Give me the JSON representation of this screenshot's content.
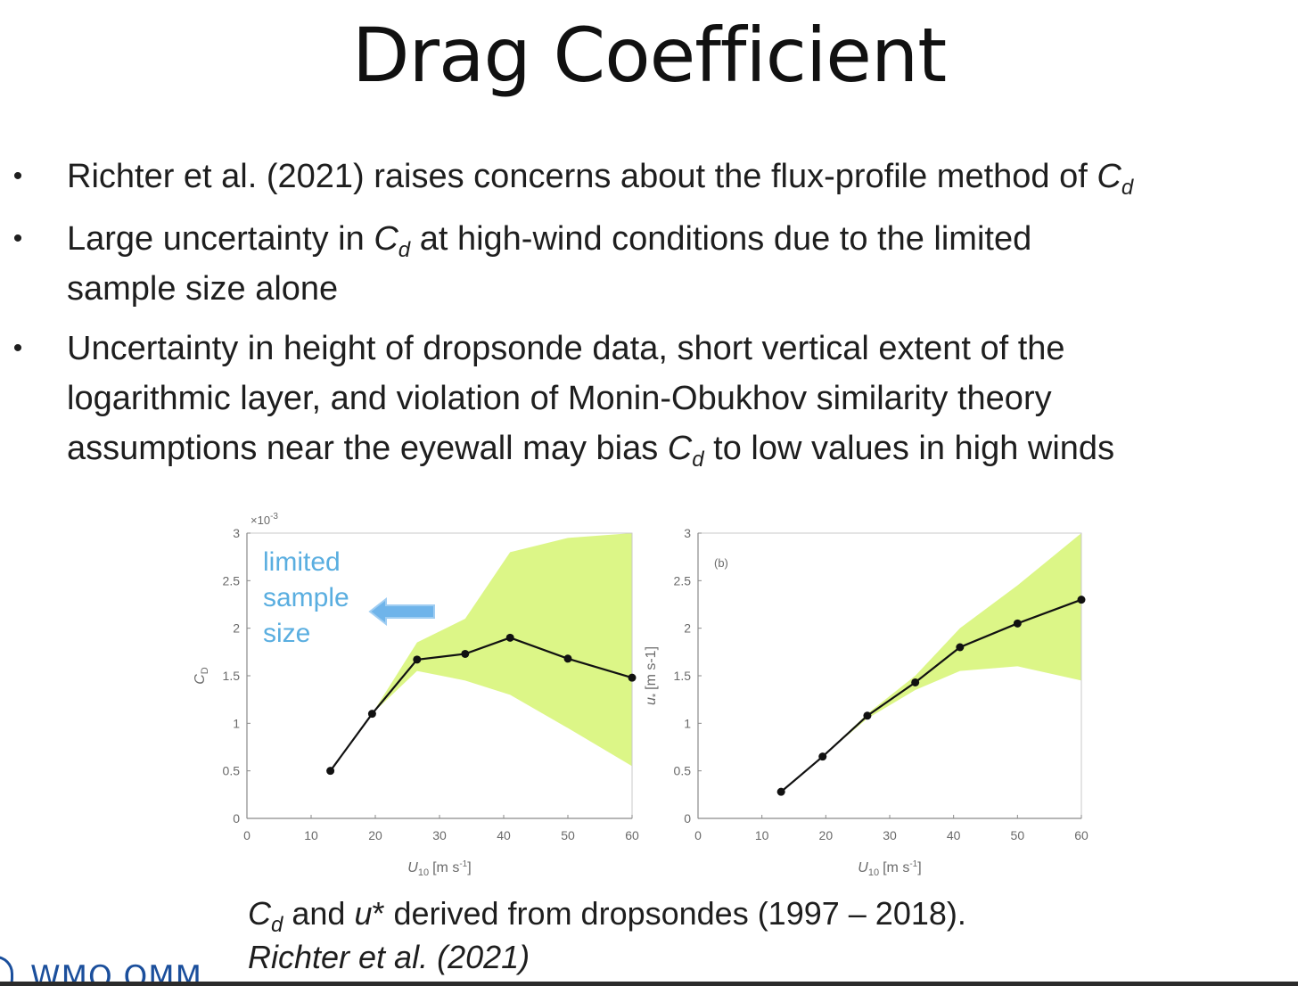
{
  "slide": {
    "title": "Drag Coefficient",
    "bullets": [
      {
        "lines": [
          {
            "segments": [
              {
                "t": "Richter et al. (2021) raises concerns about the flux-profile method of "
              },
              {
                "t": "C",
                "s": "sym"
              },
              {
                "t": "d",
                "s": "sub"
              }
            ]
          }
        ]
      },
      {
        "lines": [
          {
            "segments": [
              {
                "t": "Large uncertainty in "
              },
              {
                "t": "C",
                "s": "sym"
              },
              {
                "t": "d",
                "s": "sub"
              },
              {
                "t": " at high-wind conditions due to the limited"
              }
            ]
          },
          {
            "segments": [
              {
                "t": "sample size alone"
              }
            ]
          }
        ]
      },
      {
        "lines": [
          {
            "segments": [
              {
                "t": "Uncertainty in height of dropsonde data, short vertical extent of the"
              }
            ]
          },
          {
            "segments": [
              {
                "t": "logarithmic layer, and violation of Monin-Obukhov similarity theory"
              }
            ]
          },
          {
            "segments": [
              {
                "t": "assumptions near the eyewall may bias "
              },
              {
                "t": "C",
                "s": "sym"
              },
              {
                "t": "d",
                "s": "sub"
              },
              {
                "t": " to low values in high winds"
              }
            ]
          }
        ]
      }
    ],
    "caption": {
      "line1": {
        "segments": [
          {
            "t": "C",
            "s": "sym"
          },
          {
            "t": "d",
            "s": "sub"
          },
          {
            "t": " and "
          },
          {
            "t": "u",
            "s": "sym"
          },
          {
            "t": "* derived from dropsondes (1997 – 2018)."
          }
        ]
      },
      "line2": "Richter et al. (2021)"
    },
    "logo": "WMO OMM"
  },
  "chart_data": [
    {
      "type": "line",
      "panel_label": "",
      "x": [
        13,
        19.5,
        26.5,
        34,
        41,
        50,
        60
      ],
      "y": [
        0.5,
        1.1,
        1.67,
        1.73,
        1.9,
        1.68,
        1.48
      ],
      "band_x": [
        13,
        19.5,
        26.5,
        34,
        41,
        50,
        60
      ],
      "band_lower": [
        0.5,
        1.1,
        1.55,
        1.45,
        1.3,
        0.95,
        0.55
      ],
      "band_upper": [
        0.5,
        1.1,
        1.85,
        2.1,
        2.8,
        2.95,
        3.0
      ],
      "xlabel": "U10 [m s-1]",
      "xlabel_main": "U",
      "xlabel_sub": "10",
      "xlabel_unit": "[m s",
      "xlabel_exp": "-1",
      "xlabel_end": "]",
      "ylabel": "CD",
      "ylabel_main": "C",
      "ylabel_sub": "D",
      "ylabel_unit": "",
      "multiplier": "×10",
      "multiplier_exp": "-3",
      "xlim": [
        0,
        60
      ],
      "ylim": [
        0,
        3
      ],
      "xticks": [
        0,
        10,
        20,
        30,
        40,
        50,
        60
      ],
      "yticks": [
        0,
        0.5,
        1,
        1.5,
        2,
        2.5,
        3
      ],
      "annotation": [
        "limited",
        "sample",
        "size"
      ],
      "colors": {
        "band": "#d8f57a",
        "line": "#111111",
        "annotation": "#5aaee0",
        "arrow": "#6fb4ea"
      }
    },
    {
      "type": "line",
      "panel_label": "(b)",
      "x": [
        13,
        19.5,
        26.5,
        34,
        41,
        50,
        60
      ],
      "y": [
        0.28,
        0.65,
        1.08,
        1.43,
        1.8,
        2.05,
        2.3
      ],
      "band_x": [
        13,
        19.5,
        26.5,
        34,
        41,
        50,
        60
      ],
      "band_lower": [
        0.28,
        0.65,
        1.05,
        1.35,
        1.55,
        1.6,
        1.45
      ],
      "band_upper": [
        0.28,
        0.65,
        1.1,
        1.5,
        2.0,
        2.45,
        3.0
      ],
      "xlabel": "U10 [m s-1]",
      "xlabel_main": "U",
      "xlabel_sub": "10",
      "xlabel_unit": "[m s",
      "xlabel_exp": "-1",
      "xlabel_end": "]",
      "ylabel": "u* [m s-1]",
      "ylabel_main": "u",
      "ylabel_sub": "*",
      "ylabel_unit": "[m s-1]",
      "multiplier": "",
      "multiplier_exp": "",
      "xlim": [
        0,
        60
      ],
      "ylim": [
        0,
        3
      ],
      "xticks": [
        0,
        10,
        20,
        30,
        40,
        50,
        60
      ],
      "yticks": [
        0,
        0.5,
        1,
        1.5,
        2,
        2.5,
        3
      ],
      "annotation": [],
      "colors": {
        "band": "#d8f57a",
        "line": "#111111",
        "annotation": "#5aaee0",
        "arrow": "#6fb4ea"
      }
    }
  ]
}
